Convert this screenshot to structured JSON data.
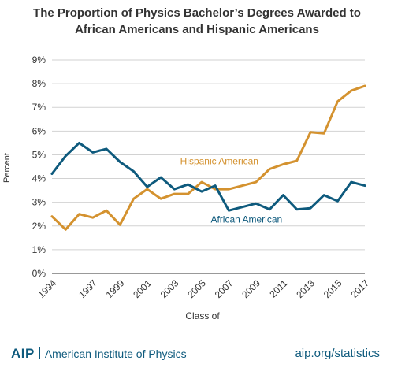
{
  "chart_data": {
    "type": "line",
    "title_lines": [
      "The Proportion of Physics Bachelor’s Degrees Awarded to",
      "African Americans and Hispanic Americans"
    ],
    "xlabel": "Class of",
    "ylabel": "Percent",
    "x": [
      1994,
      1995,
      1996,
      1997,
      1998,
      1999,
      2000,
      2001,
      2002,
      2003,
      2004,
      2005,
      2006,
      2007,
      2008,
      2009,
      2010,
      2011,
      2012,
      2013,
      2014,
      2015,
      2016,
      2017
    ],
    "xtick_values": [
      1994,
      1997,
      1999,
      2001,
      2003,
      2005,
      2007,
      2009,
      2011,
      2013,
      2015,
      2017
    ],
    "xtick_labels": [
      "1994",
      "1997",
      "1999",
      "2001",
      "2003",
      "2005",
      "2007",
      "2009",
      "2011",
      "2013",
      "2015",
      "2017"
    ],
    "ylim": [
      0,
      9
    ],
    "ytick_values": [
      0,
      1,
      2,
      3,
      4,
      5,
      6,
      7,
      8,
      9
    ],
    "ytick_labels": [
      "0%",
      "1%",
      "2%",
      "3%",
      "4%",
      "5%",
      "6%",
      "7%",
      "8%",
      "9%"
    ],
    "grid": true,
    "series": [
      {
        "name": "Hispanic American",
        "color": "#d4922f",
        "label_at": [
          2006.3,
          4.6
        ],
        "values": [
          2.4,
          1.85,
          2.5,
          2.35,
          2.65,
          2.05,
          3.15,
          3.55,
          3.15,
          3.35,
          3.35,
          3.85,
          3.55,
          3.55,
          3.7,
          3.85,
          4.4,
          4.6,
          4.75,
          5.95,
          5.9,
          7.25,
          7.7,
          7.9
        ]
      },
      {
        "name": "African American",
        "color": "#0e5a7d",
        "label_at": [
          2008.3,
          2.15
        ],
        "values": [
          4.2,
          4.95,
          5.5,
          5.1,
          5.25,
          4.7,
          4.3,
          3.65,
          4.05,
          3.55,
          3.75,
          3.45,
          3.7,
          2.65,
          2.8,
          2.95,
          2.7,
          3.3,
          2.7,
          2.75,
          3.3,
          3.05,
          3.85,
          3.7
        ]
      }
    ]
  },
  "footer": {
    "logo_text": "AIP",
    "org_name": "American Institute of Physics",
    "site": "aip.org/statistics"
  }
}
